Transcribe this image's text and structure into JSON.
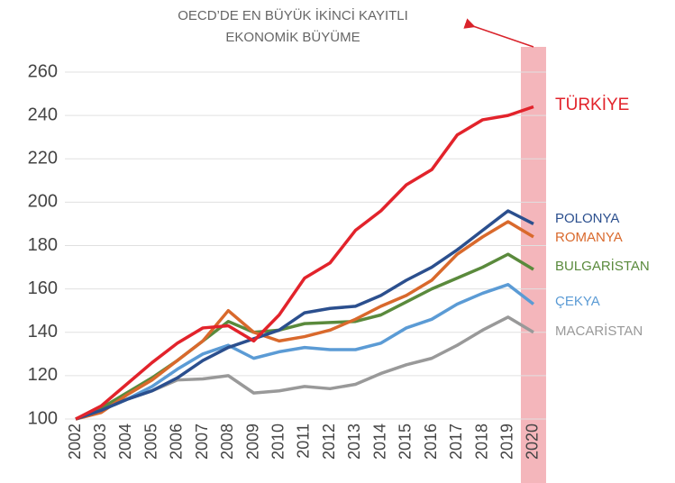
{
  "chart_data": {
    "type": "line",
    "annotation": [
      "OECD’DE EN BÜYÜK İKİNCİ KAYITLI",
      "EKONOMİK BÜYÜME"
    ],
    "categories": [
      "2002",
      "2003",
      "2004",
      "2005",
      "2006",
      "2007",
      "2008",
      "2009",
      "2010",
      "2011",
      "2012",
      "2013",
      "2014",
      "2015",
      "2016",
      "2017",
      "2018",
      "2019",
      "2020"
    ],
    "series": [
      {
        "name": "TÜRKİYE",
        "color": "#e2232b",
        "values": [
          100,
          106,
          116,
          126,
          135,
          142,
          143,
          136,
          148,
          165,
          172,
          187,
          196,
          208,
          215,
          231,
          238,
          240,
          244
        ]
      },
      {
        "name": "POLONYA",
        "color": "#2b4f8e",
        "values": [
          100,
          104,
          109,
          113,
          119,
          127,
          133,
          137,
          141,
          149,
          151,
          152,
          157,
          164,
          170,
          178,
          187,
          196,
          190
        ]
      },
      {
        "name": "ROMANYA",
        "color": "#d9692c",
        "values": [
          100,
          103,
          111,
          118,
          127,
          136,
          150,
          140,
          136,
          138,
          141,
          146,
          152,
          157,
          164,
          176,
          184,
          191,
          184
        ]
      },
      {
        "name": "BULGARİSTAN",
        "color": "#5a8a3c",
        "values": [
          100,
          105,
          112,
          119,
          127,
          136,
          145,
          140,
          141,
          144,
          144.5,
          145,
          148,
          154,
          160,
          165,
          170,
          176,
          169
        ]
      },
      {
        "name": "ÇEKYA",
        "color": "#5b9bd5",
        "values": [
          100,
          104,
          109,
          115,
          123,
          130,
          134,
          128,
          131,
          133,
          132,
          132,
          135,
          142,
          146,
          153,
          158,
          162,
          153
        ]
      },
      {
        "name": "MACARİSTAN",
        "color": "#999999",
        "values": [
          100,
          104,
          109,
          113,
          118,
          118.5,
          120,
          112,
          113,
          115,
          114,
          116,
          121,
          125,
          128,
          134,
          141,
          147,
          140
        ]
      }
    ],
    "highlight_color": "#f4b6bb",
    "ylim": [
      100,
      260
    ],
    "yticks": [
      100,
      120,
      140,
      160,
      180,
      200,
      220,
      240,
      260
    ],
    "grid": true
  }
}
